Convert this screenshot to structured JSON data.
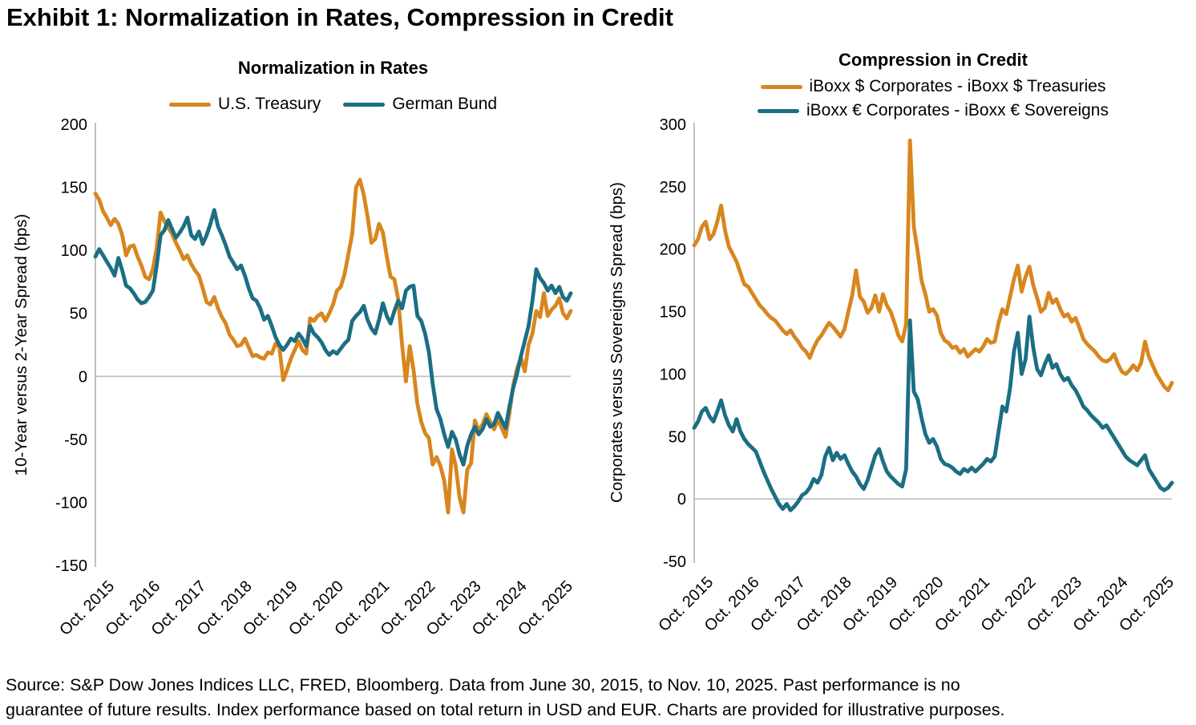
{
  "page": {
    "title": "Exhibit 1: Normalization in Rates, Compression in Credit",
    "footer": "Source: S&P Dow Jones Indices LLC, FRED, Bloomberg. Data from June 30, 2015, to Nov. 10, 2025. Past performance is no\nguarantee of future results. Index performance based on total return in USD and EUR. Charts are provided for illustrative purposes."
  },
  "colors": {
    "orange": "#D8861E",
    "teal": "#1B6E84",
    "axis_gray": "#BFBFBF",
    "text": "#000000"
  },
  "chart_data": [
    {
      "type": "line",
      "title": "Normalization in Rates",
      "ylabel": "10-Year versus 2-Year Spread (bps)",
      "ylim": [
        -150,
        200
      ],
      "yticks": [
        200,
        150,
        100,
        50,
        0,
        -50,
        -100,
        -150
      ],
      "gridline_at": 0,
      "grid": "zero-line-only",
      "legend_position": "top-single-row",
      "x_range": [
        2015.5,
        2025.87
      ],
      "x_tick_labels": [
        "Oct. 2015",
        "Oct. 2016",
        "Oct. 2017",
        "Oct. 2018",
        "Oct. 2019",
        "Oct. 2020",
        "Oct. 2021",
        "Oct. 2022",
        "Oct. 2023",
        "Oct. 2024",
        "Oct. 2025"
      ],
      "x_tick_positions": [
        2015.79,
        2016.79,
        2017.79,
        2018.79,
        2019.79,
        2020.79,
        2021.79,
        2022.79,
        2023.79,
        2024.79,
        2025.79
      ],
      "series": [
        {
          "name": "U.S. Treasury",
          "color": "#D8861E",
          "values": [
            145,
            140,
            131,
            126,
            120,
            125,
            121,
            112,
            96,
            103,
            104,
            95,
            88,
            79,
            77,
            85,
            102,
            130,
            123,
            118,
            113,
            106,
            100,
            93,
            96,
            89,
            84,
            80,
            70,
            59,
            57,
            63,
            54,
            47,
            42,
            33,
            29,
            24,
            25,
            30,
            23,
            16,
            17,
            15,
            14,
            19,
            18,
            26,
            23,
            -3,
            5,
            14,
            21,
            28,
            21,
            18,
            46,
            44,
            48,
            50,
            44,
            50,
            57,
            68,
            71,
            81,
            97,
            113,
            150,
            156,
            144,
            127,
            106,
            109,
            121,
            114,
            95,
            79,
            77,
            61,
            25,
            -4,
            24,
            5,
            -22,
            -36,
            -45,
            -49,
            -70,
            -64,
            -71,
            -83,
            -108,
            -58,
            -71,
            -96,
            -108,
            -74,
            -69,
            -35,
            -43,
            -38,
            -30,
            -36,
            -42,
            -34,
            -41,
            -48,
            -29,
            -7,
            6,
            15,
            4,
            25,
            34,
            52,
            47,
            66,
            48,
            53,
            56,
            62,
            50,
            46,
            52
          ]
        },
        {
          "name": "German Bund",
          "color": "#1B6E84",
          "values": [
            95,
            101,
            96,
            91,
            86,
            80,
            94,
            84,
            72,
            70,
            66,
            61,
            58,
            59,
            63,
            68,
            88,
            112,
            116,
            124,
            117,
            110,
            114,
            119,
            126,
            112,
            109,
            115,
            105,
            112,
            121,
            132,
            119,
            112,
            104,
            95,
            90,
            85,
            88,
            80,
            70,
            62,
            60,
            54,
            45,
            48,
            40,
            31,
            25,
            21,
            25,
            30,
            28,
            34,
            30,
            24,
            40,
            34,
            31,
            27,
            21,
            17,
            20,
            18,
            22,
            26,
            29,
            44,
            48,
            51,
            56,
            45,
            38,
            34,
            45,
            58,
            48,
            42,
            52,
            60,
            54,
            68,
            71,
            72,
            48,
            44,
            34,
            19,
            -6,
            -26,
            -34,
            -46,
            -56,
            -44,
            -50,
            -62,
            -70,
            -55,
            -46,
            -40,
            -46,
            -42,
            -34,
            -40,
            -38,
            -29,
            -35,
            -41,
            -24,
            -9,
            2,
            16,
            28,
            40,
            60,
            85,
            78,
            74,
            68,
            72,
            66,
            71,
            63,
            60,
            66
          ]
        }
      ]
    },
    {
      "type": "line",
      "title": "Compression in Credit",
      "ylabel": "Corporates versus Sovereigns Spread (bps)",
      "ylim": [
        -50,
        300
      ],
      "yticks": [
        300,
        250,
        200,
        150,
        100,
        50,
        0,
        -50
      ],
      "gridline_at": 0,
      "grid": "zero-line-only",
      "legend_position": "top-two-rows",
      "x_range": [
        2015.5,
        2025.87
      ],
      "x_tick_labels": [
        "Oct. 2015",
        "Oct. 2016",
        "Oct. 2017",
        "Oct. 2018",
        "Oct. 2019",
        "Oct. 2020",
        "Oct. 2021",
        "Oct. 2022",
        "Oct. 2023",
        "Oct. 2024",
        "Oct. 2025"
      ],
      "x_tick_positions": [
        2015.79,
        2016.79,
        2017.79,
        2018.79,
        2019.79,
        2020.79,
        2021.79,
        2022.79,
        2023.79,
        2024.79,
        2025.79
      ],
      "series": [
        {
          "name": "iBoxx $ Corporates - iBoxx $ Treasuries",
          "color": "#D8861E",
          "values": [
            203,
            208,
            218,
            222,
            208,
            212,
            222,
            235,
            215,
            202,
            196,
            190,
            181,
            172,
            170,
            165,
            160,
            155,
            152,
            148,
            145,
            143,
            139,
            135,
            132,
            135,
            130,
            126,
            121,
            118,
            113,
            121,
            127,
            131,
            136,
            141,
            138,
            134,
            130,
            136,
            150,
            163,
            183,
            162,
            158,
            149,
            153,
            163,
            150,
            164,
            155,
            150,
            141,
            131,
            126,
            140,
            287,
            218,
            198,
            175,
            164,
            150,
            152,
            147,
            133,
            127,
            125,
            121,
            122,
            117,
            120,
            114,
            117,
            120,
            118,
            122,
            128,
            125,
            126,
            141,
            152,
            148,
            162,
            176,
            187,
            166,
            178,
            186,
            171,
            161,
            150,
            153,
            165,
            157,
            160,
            152,
            146,
            148,
            142,
            145,
            137,
            128,
            124,
            121,
            118,
            114,
            111,
            110,
            112,
            116,
            108,
            102,
            100,
            103,
            107,
            103,
            109,
            126,
            114,
            107,
            100,
            95,
            90,
            87,
            93
          ]
        },
        {
          "name": "iBoxx € Corporates - iBoxx € Sovereigns",
          "color": "#1B6E84",
          "values": [
            57,
            62,
            70,
            73,
            66,
            62,
            70,
            79,
            67,
            59,
            54,
            64,
            54,
            48,
            44,
            41,
            38,
            30,
            22,
            15,
            8,
            2,
            -4,
            -8,
            -4,
            -9,
            -6,
            -2,
            3,
            5,
            9,
            16,
            13,
            19,
            34,
            41,
            31,
            37,
            32,
            35,
            28,
            22,
            18,
            12,
            8,
            15,
            25,
            35,
            40,
            30,
            22,
            18,
            15,
            12,
            10,
            24,
            143,
            86,
            80,
            65,
            52,
            45,
            48,
            42,
            32,
            28,
            27,
            25,
            22,
            20,
            24,
            22,
            25,
            22,
            25,
            28,
            32,
            30,
            34,
            54,
            74,
            70,
            89,
            118,
            133,
            100,
            112,
            146,
            121,
            104,
            99,
            108,
            115,
            105,
            108,
            100,
            95,
            97,
            91,
            87,
            81,
            74,
            71,
            67,
            64,
            61,
            57,
            59,
            54,
            49,
            44,
            39,
            34,
            31,
            29,
            27,
            31,
            35,
            24,
            19,
            14,
            9,
            7,
            9,
            13
          ]
        }
      ]
    }
  ]
}
